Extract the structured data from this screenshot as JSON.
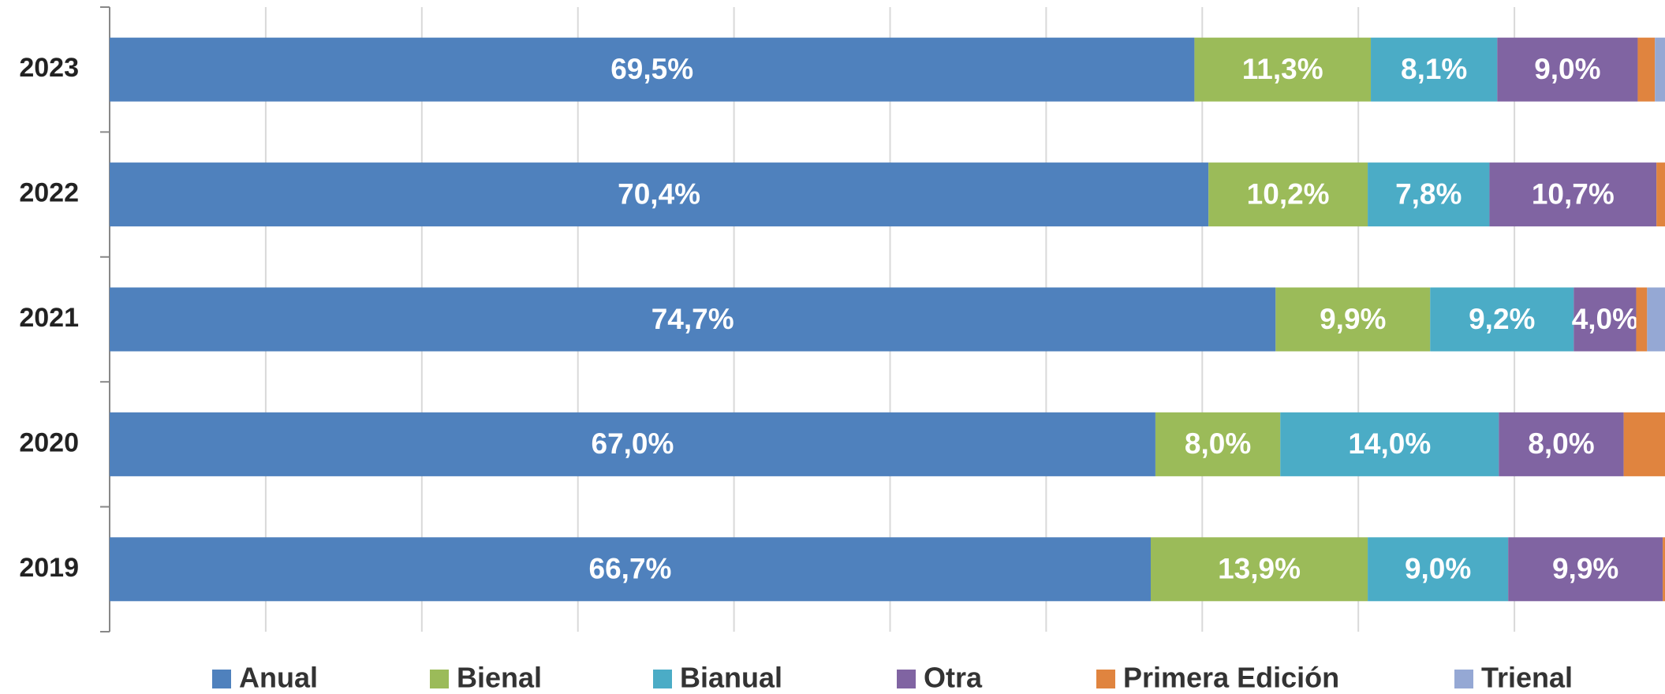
{
  "chart_data": {
    "type": "stacked_barh",
    "categories": [
      "2023",
      "2022",
      "2021",
      "2020",
      "2019"
    ],
    "series": [
      {
        "name": "Anual",
        "color": "#4f81bd",
        "values": [
          69.5,
          70.4,
          74.7,
          67.0,
          66.7
        ],
        "value_labels": [
          "69,5%",
          "70,4%",
          "74,7%",
          "67,0%",
          "66,7%"
        ]
      },
      {
        "name": "Bienal",
        "color": "#9bbb59",
        "values": [
          11.3,
          10.2,
          9.9,
          8.0,
          13.9
        ],
        "value_labels": [
          "11,3%",
          "10,2%",
          "9,9%",
          "8,0%",
          "13,9%"
        ]
      },
      {
        "name": "Bianual",
        "color": "#4bacc6",
        "values": [
          8.1,
          7.8,
          9.2,
          14.0,
          9.0
        ],
        "value_labels": [
          "8,1%",
          "7,8%",
          "9,2%",
          "14,0%",
          "9,0%"
        ]
      },
      {
        "name": "Otra",
        "color": "#8064a2",
        "values": [
          9.0,
          10.7,
          4.0,
          8.0,
          9.9
        ],
        "value_labels": [
          "9,0%",
          "10,7%",
          "4,0%",
          "8,0%",
          "9,9%"
        ]
      },
      {
        "name": "Primera Edición",
        "color": "#e0843f",
        "values": [
          1.1,
          0.9,
          0.7,
          3.0,
          0.2
        ],
        "value_labels": [
          null,
          null,
          null,
          null,
          null
        ]
      },
      {
        "name": "Trienal",
        "color": "#95a8d4",
        "values": [
          1.0,
          0,
          1.5,
          0,
          0.3
        ],
        "value_labels": [
          null,
          null,
          null,
          null,
          null
        ]
      }
    ],
    "xlim": [
      0,
      100
    ],
    "xticks": [
      0,
      10,
      20,
      30,
      40,
      50,
      60,
      70,
      80,
      90,
      100
    ],
    "grid": true,
    "legend": "bottom"
  }
}
